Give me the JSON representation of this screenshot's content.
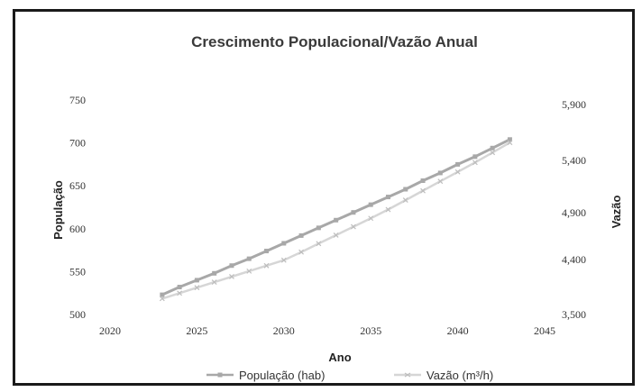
{
  "chart_data": {
    "type": "line",
    "title": "Crescimento Populacional/Vazão Anual",
    "xlabel": "Ano",
    "ylabel": "População",
    "y2label": "Vazão",
    "xlim": [
      2020,
      2045
    ],
    "ylim": [
      500,
      750
    ],
    "y2lim": [
      3500,
      5900
    ],
    "x_ticks": [
      "2020",
      "2025",
      "2030",
      "2035",
      "2040",
      "2045"
    ],
    "y_ticks": [
      "500",
      "550",
      "600",
      "650",
      "700",
      "750"
    ],
    "y2_ticks": [
      "3,500",
      "4,400",
      "4,900",
      "5,400",
      "5,900"
    ],
    "grid": false,
    "legend_position": "bottom",
    "x": [
      2023,
      2024,
      2025,
      2026,
      2027,
      2028,
      2029,
      2030,
      2031,
      2032,
      2033,
      2034,
      2035,
      2036,
      2037,
      2038,
      2039,
      2040,
      2041,
      2042,
      2043
    ],
    "series": [
      {
        "name": "População (hab)",
        "axis": "left",
        "color": "#a8a8a8",
        "marker": "square",
        "values": [
          523,
          532,
          540,
          548,
          557,
          565,
          574,
          583,
          592,
          601,
          610,
          619,
          628,
          637,
          646,
          656,
          665,
          675,
          684,
          694,
          704
        ]
      },
      {
        "name": "Vazão (m³/h)",
        "axis": "right",
        "color": "#d6d6d6",
        "marker": "x",
        "values": [
          3760,
          3850,
          3940,
          4030,
          4120,
          4210,
          4300,
          4390,
          4480,
          4570,
          4660,
          4750,
          4840,
          4930,
          5020,
          5110,
          5200,
          5290,
          5380,
          5470,
          5560
        ]
      }
    ]
  }
}
